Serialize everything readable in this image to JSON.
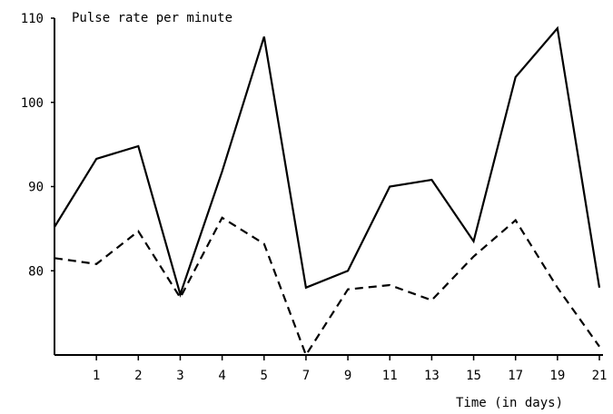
{
  "chart_data": {
    "type": "line",
    "title": "",
    "ylabel": "Pulse rate per minute",
    "xlabel": "Time (in days)",
    "x_tick_labels": [
      "1",
      "2",
      "3",
      "4",
      "5",
      "7",
      "9",
      "11",
      "13",
      "15",
      "17",
      "19",
      "21"
    ],
    "y_ticks": [
      80,
      90,
      100,
      110
    ],
    "ylim": [
      70,
      110
    ],
    "grid": false,
    "series": [
      {
        "style": "solid",
        "values": [
          85.2,
          93.3,
          94.8,
          77.2,
          91.8,
          107.8,
          78.0,
          80.0,
          90.0,
          90.8,
          83.5,
          103.0,
          108.8,
          78.0
        ]
      },
      {
        "style": "dashed",
        "values": [
          81.5,
          80.8,
          84.7,
          76.8,
          86.3,
          83.2,
          70.0,
          77.8,
          78.3,
          76.5,
          81.7,
          86.0,
          78.0,
          71.0
        ]
      }
    ]
  }
}
